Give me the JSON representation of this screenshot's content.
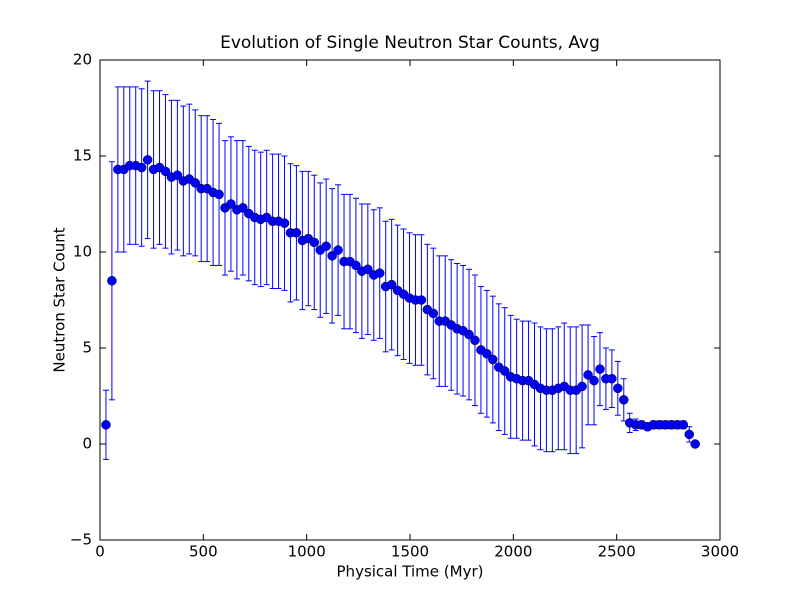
{
  "chart_data": {
    "type": "errorbar",
    "title": "Evolution of Single Neutron Star Counts, Avg",
    "x_label": "Physical Time (Myr)",
    "y_label": "Neutron Star Count",
    "color": "#0000ff",
    "x": [
      28.8,
      57.6,
      86.4,
      115.2,
      144,
      172.8,
      201.6,
      230.4,
      259.2,
      288,
      316.8,
      345.6,
      374.4,
      403.2,
      432,
      460.8,
      489.6,
      518.4,
      547.2,
      576,
      604.8,
      633.6,
      662.4,
      691.2,
      720,
      748.8,
      777.6,
      806.4,
      835.2,
      864,
      892.8,
      921.6,
      950.4,
      979.2,
      1008,
      1036.8,
      1065.6,
      1094.4,
      1123.2,
      1152,
      1180.8,
      1209.6,
      1238.4,
      1267.2,
      1296,
      1324.8,
      1353.6,
      1382.4,
      1411.2,
      1440,
      1468.8,
      1497.6,
      1526.4,
      1555.2,
      1584,
      1612.8,
      1641.6,
      1670.4,
      1699.2,
      1728,
      1756.8,
      1785.6,
      1814.4,
      1843.2,
      1872,
      1900.8,
      1929.6,
      1958.4,
      1987.2,
      2016,
      2044.8,
      2073.6,
      2102.4,
      2131.2,
      2160,
      2188.8,
      2217.6,
      2246.4,
      2275.2,
      2304,
      2332.8,
      2361.6,
      2390.4,
      2419.2,
      2448,
      2476.8,
      2505.6,
      2534.4,
      2563.2,
      2592,
      2620.8,
      2649.6,
      2678.4,
      2707.2,
      2736,
      2764.8,
      2793.6,
      2822.4,
      2851.2,
      2880
    ],
    "values": [
      1.0,
      8.5,
      14.3,
      14.3,
      14.5,
      14.5,
      14.4,
      14.8,
      14.3,
      14.4,
      14.2,
      13.9,
      14.0,
      13.7,
      13.8,
      13.6,
      13.3,
      13.3,
      13.1,
      13.0,
      12.3,
      12.5,
      12.2,
      12.3,
      12.0,
      11.8,
      11.7,
      11.8,
      11.6,
      11.6,
      11.5,
      11.0,
      11.0,
      10.6,
      10.7,
      10.5,
      10.1,
      10.3,
      9.8,
      10.1,
      9.5,
      9.5,
      9.3,
      9.0,
      9.1,
      8.8,
      8.9,
      8.2,
      8.3,
      8.0,
      7.8,
      7.6,
      7.5,
      7.5,
      7.0,
      6.8,
      6.4,
      6.4,
      6.2,
      6.0,
      5.9,
      5.7,
      5.4,
      4.9,
      4.7,
      4.4,
      4.0,
      3.8,
      3.5,
      3.4,
      3.3,
      3.3,
      3.1,
      2.9,
      2.8,
      2.8,
      2.9,
      3.0,
      2.8,
      2.8,
      3.0,
      3.6,
      3.3,
      3.9,
      3.4,
      3.4,
      2.9,
      2.3,
      1.1,
      1.0,
      1.0,
      0.9,
      1.0,
      1.0,
      1.0,
      1.0,
      1.0,
      1.0,
      0.5,
      0.0
    ],
    "errors": [
      1.8,
      6.2,
      4.3,
      4.3,
      4.1,
      4.1,
      4.1,
      4.1,
      4.1,
      4.0,
      4.0,
      4.0,
      3.9,
      3.9,
      3.9,
      3.8,
      3.8,
      3.8,
      3.8,
      3.7,
      3.5,
      3.5,
      3.6,
      3.5,
      3.5,
      3.5,
      3.5,
      3.5,
      3.5,
      3.5,
      3.5,
      3.6,
      3.5,
      3.6,
      3.5,
      3.5,
      3.5,
      3.5,
      3.5,
      3.4,
      3.5,
      3.5,
      3.5,
      3.5,
      3.4,
      3.4,
      3.4,
      3.4,
      3.4,
      3.4,
      3.4,
      3.4,
      3.4,
      3.4,
      3.4,
      3.4,
      3.4,
      3.4,
      3.4,
      3.4,
      3.4,
      3.4,
      3.4,
      3.3,
      3.3,
      3.3,
      3.3,
      3.3,
      3.2,
      3.1,
      3.1,
      3.1,
      3.2,
      3.2,
      3.2,
      3.2,
      3.2,
      3.3,
      3.3,
      3.3,
      3.2,
      2.6,
      2.3,
      1.9,
      1.6,
      1.5,
      1.4,
      1.1,
      0.5,
      0.3,
      0.2,
      0.2,
      0.2,
      0.2,
      0.2,
      0.2,
      0.2,
      0.2,
      0.4,
      0.0
    ],
    "xlim": [
      0,
      3000
    ],
    "xticks": [
      0,
      500,
      1000,
      1500,
      2000,
      2500,
      3000
    ],
    "ylim": [
      -5,
      20
    ],
    "yticks": [
      {
        "value": -5,
        "label": "−5"
      },
      0,
      5,
      10,
      15,
      20
    ]
  }
}
